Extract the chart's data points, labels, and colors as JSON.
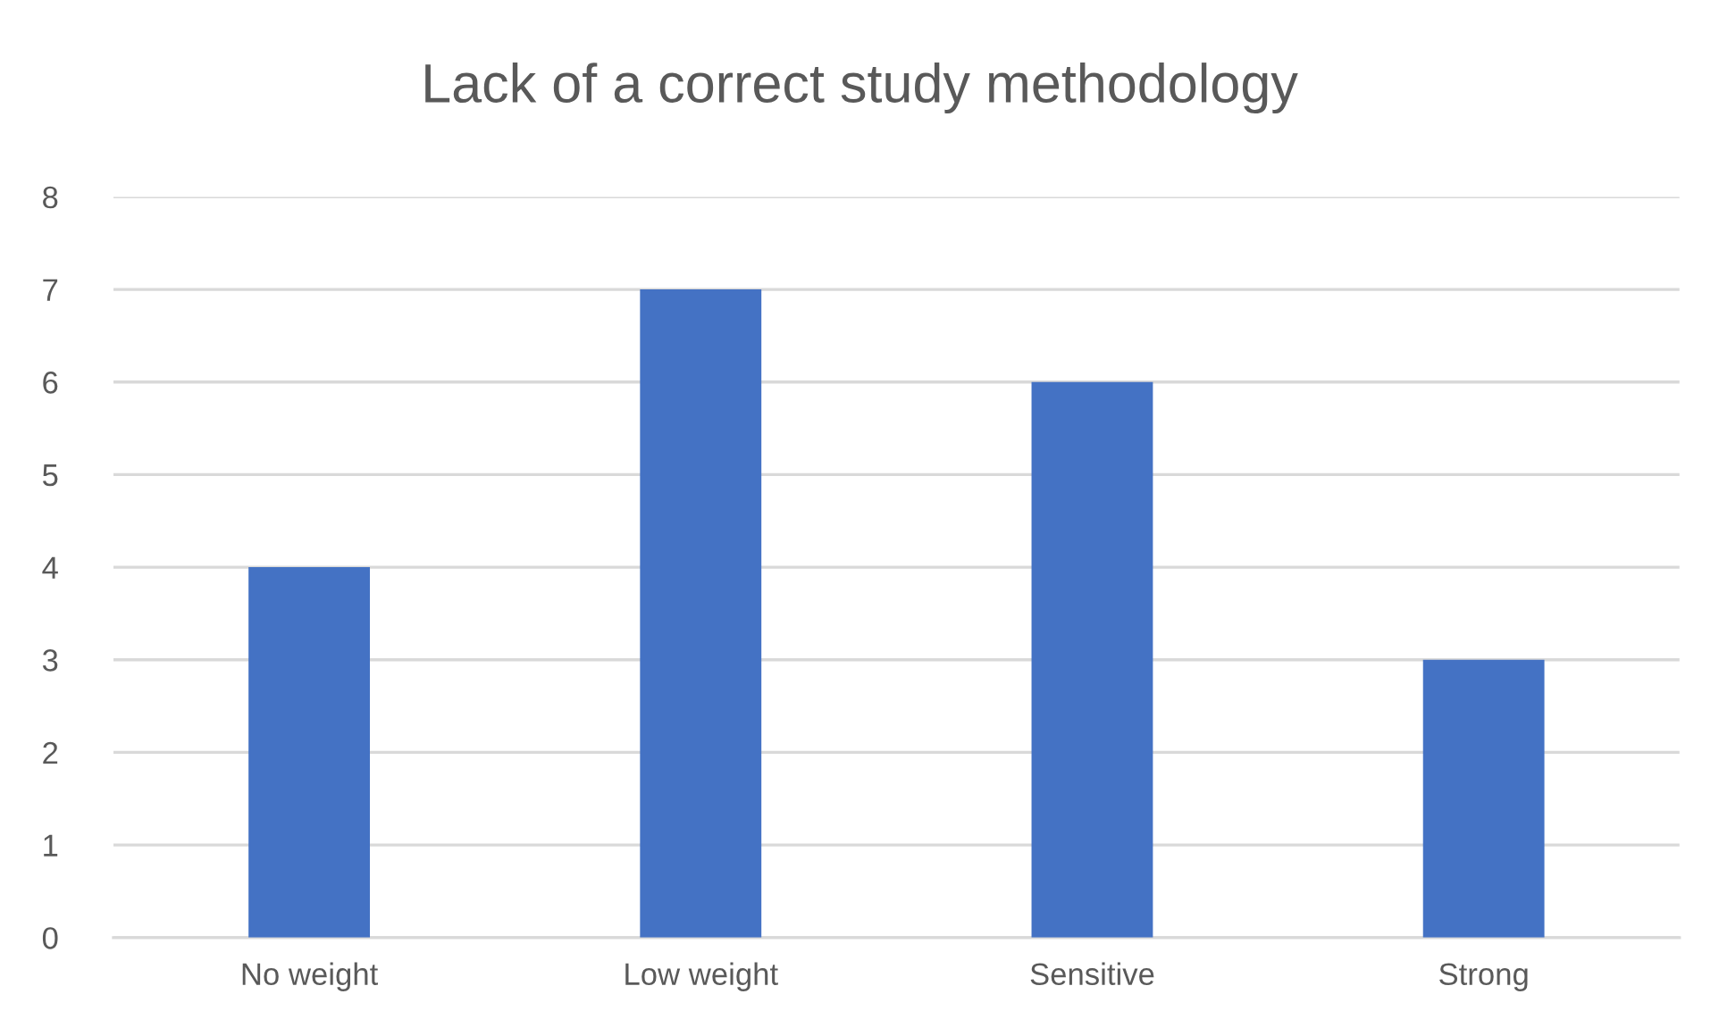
{
  "chart_data": {
    "type": "bar",
    "title": "Lack of a correct study methodology",
    "categories": [
      "No weight",
      "Low weight",
      "Sensitive",
      "Strong"
    ],
    "values": [
      4,
      7,
      6,
      3
    ],
    "color": "#4472c4",
    "ylim": [
      0,
      8
    ],
    "yticks": [
      0,
      1,
      2,
      3,
      4,
      5,
      6,
      7,
      8
    ],
    "grid": "y",
    "legend": false
  }
}
